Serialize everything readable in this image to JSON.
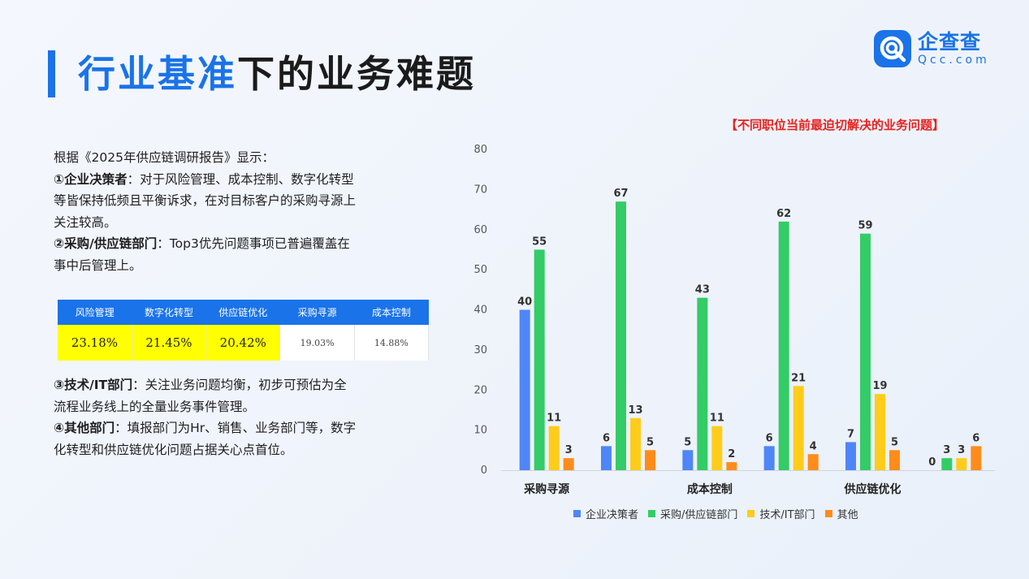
{
  "header": {
    "title_highlight": "行业基准",
    "title_rest": "下的业务难题",
    "logo_cn": "企查查",
    "logo_en": "Qcc.com"
  },
  "text": {
    "intro": "根据《2025年供应链调研报告》显示：",
    "p1_bold": "①企业决策者",
    "p1_line1": "：对于风险管理、成本控制、数字化转型",
    "p1_line2": "等皆保持低频且平衡诉求，在对目标客户的采购寻源上",
    "p1_line3": "关注较高。",
    "p2_bold": "②采购/供应链部门",
    "p2_line1": "：Top3优先问题事项已普遍覆盖在",
    "p2_line2": "事中后管理上。",
    "p3_bold": "③技术/IT部门",
    "p3_line1": "：关注业务问题均衡，初步可预估为全",
    "p3_line2": "流程业务线上的全量业务事件管理。",
    "p4_bold": "④其他部门",
    "p4_line1": "：填报部门为Hr、销售、业务部门等，数字",
    "p4_line2": "化转型和供应链优化问题占据关心点首位。"
  },
  "mini_table": {
    "headers": [
      "风险管理",
      "数字化转型",
      "供应链优化",
      "采购寻源",
      "成本控制"
    ],
    "values": [
      "23.18%",
      "21.45%",
      "20.42%",
      "19.03%",
      "14.88%"
    ],
    "highlight_color": "#ffff00",
    "header_color": "#1a73e8"
  },
  "chart_data": {
    "type": "bar",
    "title": "【不同职位当前最迫切解决的业务问题】",
    "ylim": [
      0,
      80
    ],
    "yticks": [
      0,
      10,
      20,
      30,
      40,
      50,
      60,
      70,
      80
    ],
    "category_count": 6,
    "category_labels": [
      "采购寻源",
      "",
      "成本控制",
      "",
      "供应链优化",
      ""
    ],
    "series": [
      {
        "name": "企业决策者",
        "color": "#4f86f7",
        "values": [
          40,
          6,
          5,
          6,
          7,
          0
        ]
      },
      {
        "name": "采购/供应链部门",
        "color": "#33cc66",
        "values": [
          55,
          67,
          43,
          62,
          59,
          3
        ]
      },
      {
        "name": "技术/IT部门",
        "color": "#ffcc1a",
        "values": [
          11,
          13,
          11,
          21,
          19,
          3
        ]
      },
      {
        "name": "其他",
        "color": "#ff8c1a",
        "values": [
          3,
          5,
          2,
          4,
          5,
          6
        ]
      }
    ],
    "legend_position": "bottom",
    "grid": false
  }
}
